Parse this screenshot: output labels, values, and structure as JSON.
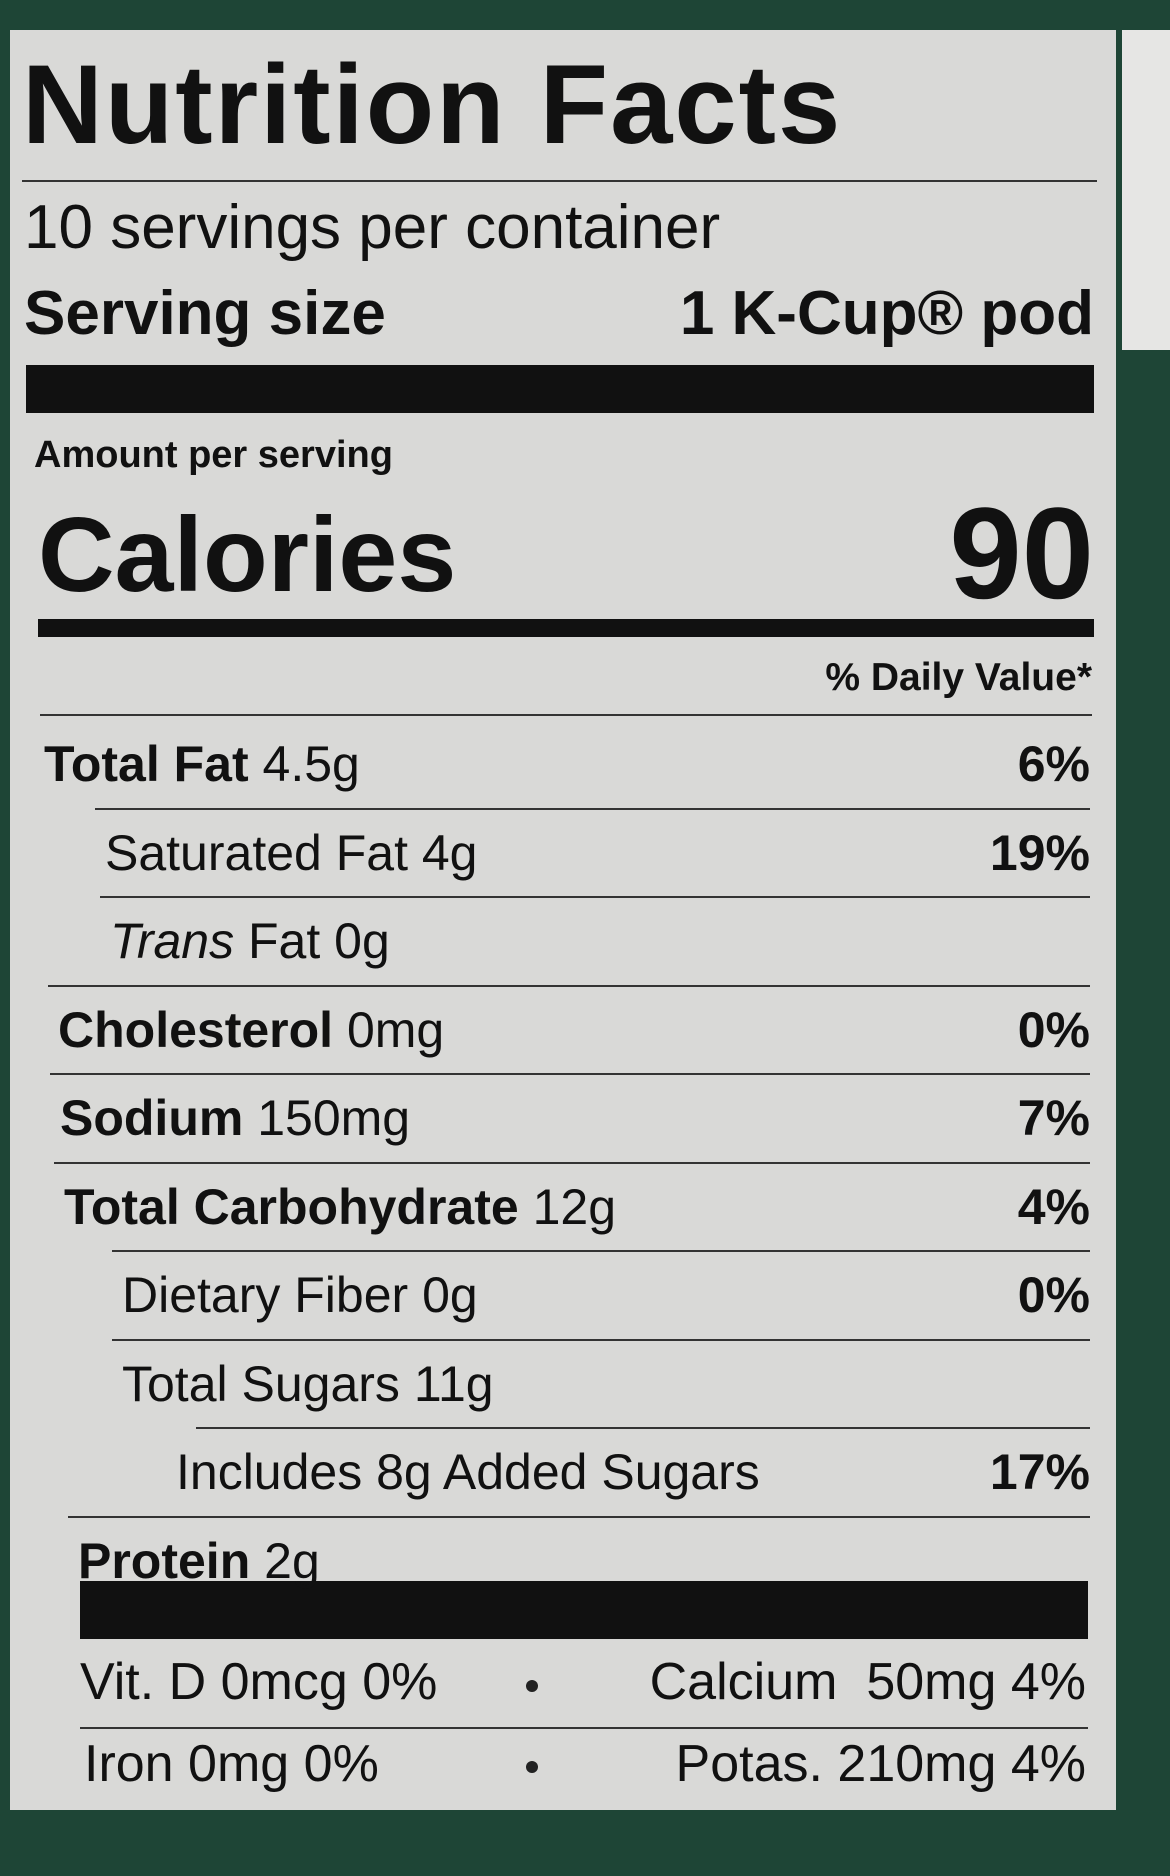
{
  "header": {
    "title": "Nutrition Facts",
    "servings": "10 servings per container",
    "serving_size_label": "Serving size",
    "serving_size_value": "1 K-Cup® pod"
  },
  "calories": {
    "amount_label": "Amount per serving",
    "label": "Calories",
    "value": "90"
  },
  "daily_value_header": "% Daily Value*",
  "nutrients": [
    {
      "name": "Total Fat",
      "amount": "4.5g",
      "dv": "6%"
    },
    {
      "name": "Saturated Fat",
      "amount": "4g",
      "dv": "19%"
    },
    {
      "name_italic": "Trans",
      "name": "Fat",
      "amount": "0g"
    },
    {
      "name": "Cholesterol",
      "amount": "0mg",
      "dv": "0%"
    },
    {
      "name": "Sodium",
      "amount": "150mg",
      "dv": "7%"
    },
    {
      "name": "Total Carbohydrate",
      "amount": "12g",
      "dv": "4%"
    },
    {
      "name": "Dietary Fiber",
      "amount": "0g",
      "dv": "0%"
    },
    {
      "name": "Total Sugars",
      "amount": "11g"
    },
    {
      "name": "Includes 8g Added Sugars",
      "dv": "17%"
    },
    {
      "name": "Protein",
      "amount": "2g"
    }
  ],
  "vitamins": [
    "Vit. D 0mcg 0%",
    "Calcium  50mg 4%",
    "Iron 0mg 0%",
    "Potas. 210mg 4%"
  ]
}
